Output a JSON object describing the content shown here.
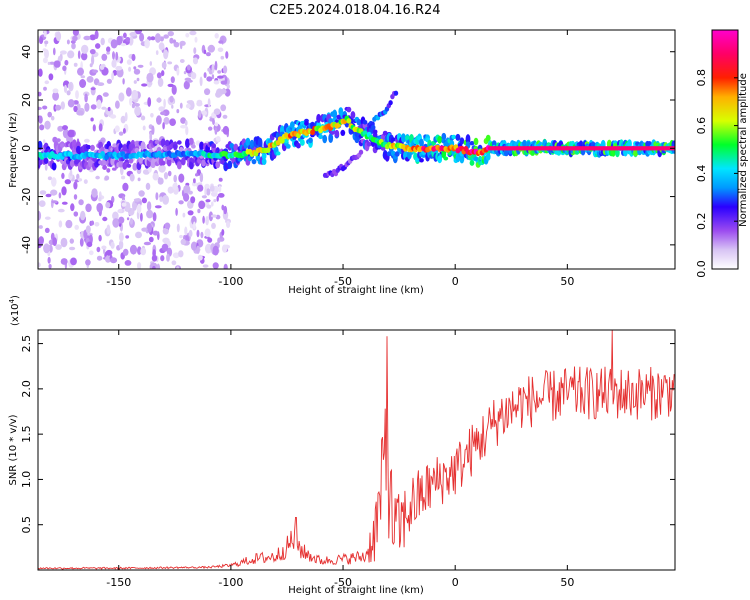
{
  "title": "C2E5.2024.018.04.16.R24",
  "colors": {
    "axis": "#000000",
    "snr_line": "#e53030",
    "cmap": [
      "#ffffff",
      "#d8c4f4",
      "#9c4cf0",
      "#2a00ff",
      "#0099ff",
      "#00e6ff",
      "#00ff2a",
      "#d8ff00",
      "#ffb000",
      "#ff2000",
      "#ff0066",
      "#ff00cc"
    ]
  },
  "chart_data": [
    {
      "type": "heatmap",
      "name": "spectrogram",
      "xlabel": "Height of straight line (km)",
      "ylabel": "Frequency (Hz)",
      "xlim": [
        -186,
        98
      ],
      "ylim": [
        -50,
        49
      ],
      "xticks": [
        -150,
        -100,
        -50,
        0,
        50
      ],
      "xtick_labels": [
        "-150",
        "-100",
        "-50",
        "0",
        "50"
      ],
      "yticks": [
        -40,
        -20,
        0,
        20,
        40
      ],
      "ytick_labels": [
        "-40",
        "-20",
        "0",
        "20",
        "40"
      ],
      "colorbar": {
        "label": "Normalized spectral amplitude",
        "range": [
          0,
          1
        ],
        "ticks": [
          0.0,
          0.2,
          0.4,
          0.6,
          0.8
        ],
        "tick_labels": [
          "0.0",
          "0.2",
          "0.4",
          "0.6",
          "0.8"
        ]
      },
      "ridge": {
        "x": [
          -186,
          -150,
          -120,
          -100,
          -85,
          -75,
          -65,
          -55,
          -48,
          -45,
          -38,
          -30,
          -20,
          -10,
          0,
          5,
          10,
          15,
          50,
          98
        ],
        "freq": [
          -3,
          -3,
          -2,
          -3,
          -1,
          5,
          7,
          9,
          12,
          8,
          5,
          1,
          0,
          0,
          0,
          -1,
          -2,
          0,
          0,
          0
        ],
        "amp": [
          0.45,
          0.4,
          0.38,
          0.55,
          0.7,
          0.75,
          0.72,
          0.7,
          0.65,
          0.6,
          0.55,
          0.62,
          0.8,
          0.85,
          0.85,
          0.9,
          0.9,
          0.92,
          0.92,
          0.92
        ]
      },
      "branches": [
        {
          "x": [
            -40,
            -35,
            -30,
            -26
          ],
          "freq": [
            8,
            12,
            17,
            24
          ],
          "amp": [
            0.35,
            0.35,
            0.3,
            0.25
          ]
        },
        {
          "x": [
            -58,
            -52,
            -46,
            -42
          ],
          "freq": [
            -12,
            -9,
            -5,
            -2
          ],
          "amp": [
            0.25,
            0.25,
            0.2,
            0.2
          ]
        }
      ]
    },
    {
      "type": "line",
      "name": "snr",
      "xlabel": "Height of straight line (km)",
      "ylabel": "SNR (10 * v/v)",
      "yscale_label": "(x10",
      "yscale_exp": "4",
      "yscale_close": ")",
      "xlim": [
        -186,
        98
      ],
      "ylim": [
        0,
        2.65
      ],
      "xticks": [
        -150,
        -100,
        -50,
        0,
        50
      ],
      "xtick_labels": [
        "-150",
        "-100",
        "-50",
        "0",
        "50"
      ],
      "yticks": [
        0.5,
        1.0,
        1.5,
        2.0,
        2.5
      ],
      "ytick_labels": [
        "0.5",
        "1.0",
        "1.5",
        "2.0",
        "2.5"
      ],
      "envelope": {
        "x": [
          -186,
          -150,
          -110,
          -100,
          -90,
          -80,
          -75,
          -72,
          -68,
          -60,
          -50,
          -40,
          -36,
          -33,
          -31,
          -30,
          -28,
          -25,
          -20,
          -10,
          0,
          10,
          20,
          30,
          40,
          50,
          60,
          70,
          80,
          90,
          98
        ],
        "base": [
          0.02,
          0.02,
          0.03,
          0.05,
          0.12,
          0.15,
          0.25,
          0.35,
          0.2,
          0.1,
          0.12,
          0.15,
          0.4,
          0.8,
          1.4,
          1.2,
          0.5,
          0.45,
          0.7,
          0.95,
          1.1,
          1.4,
          1.7,
          1.85,
          1.9,
          1.95,
          1.95,
          1.95,
          1.95,
          1.95,
          2.0
        ],
        "noise": [
          0.01,
          0.01,
          0.01,
          0.02,
          0.06,
          0.08,
          0.12,
          0.18,
          0.1,
          0.05,
          0.06,
          0.08,
          0.35,
          0.55,
          0.8,
          0.8,
          0.45,
          0.4,
          0.35,
          0.3,
          0.3,
          0.3,
          0.3,
          0.3,
          0.3,
          0.3,
          0.3,
          0.3,
          0.3,
          0.3,
          0.3
        ]
      },
      "peaks": [
        {
          "x": -71,
          "y": 0.58
        },
        {
          "x": -30.5,
          "y": 2.58
        },
        {
          "x": 70,
          "y": 2.65
        }
      ]
    }
  ]
}
